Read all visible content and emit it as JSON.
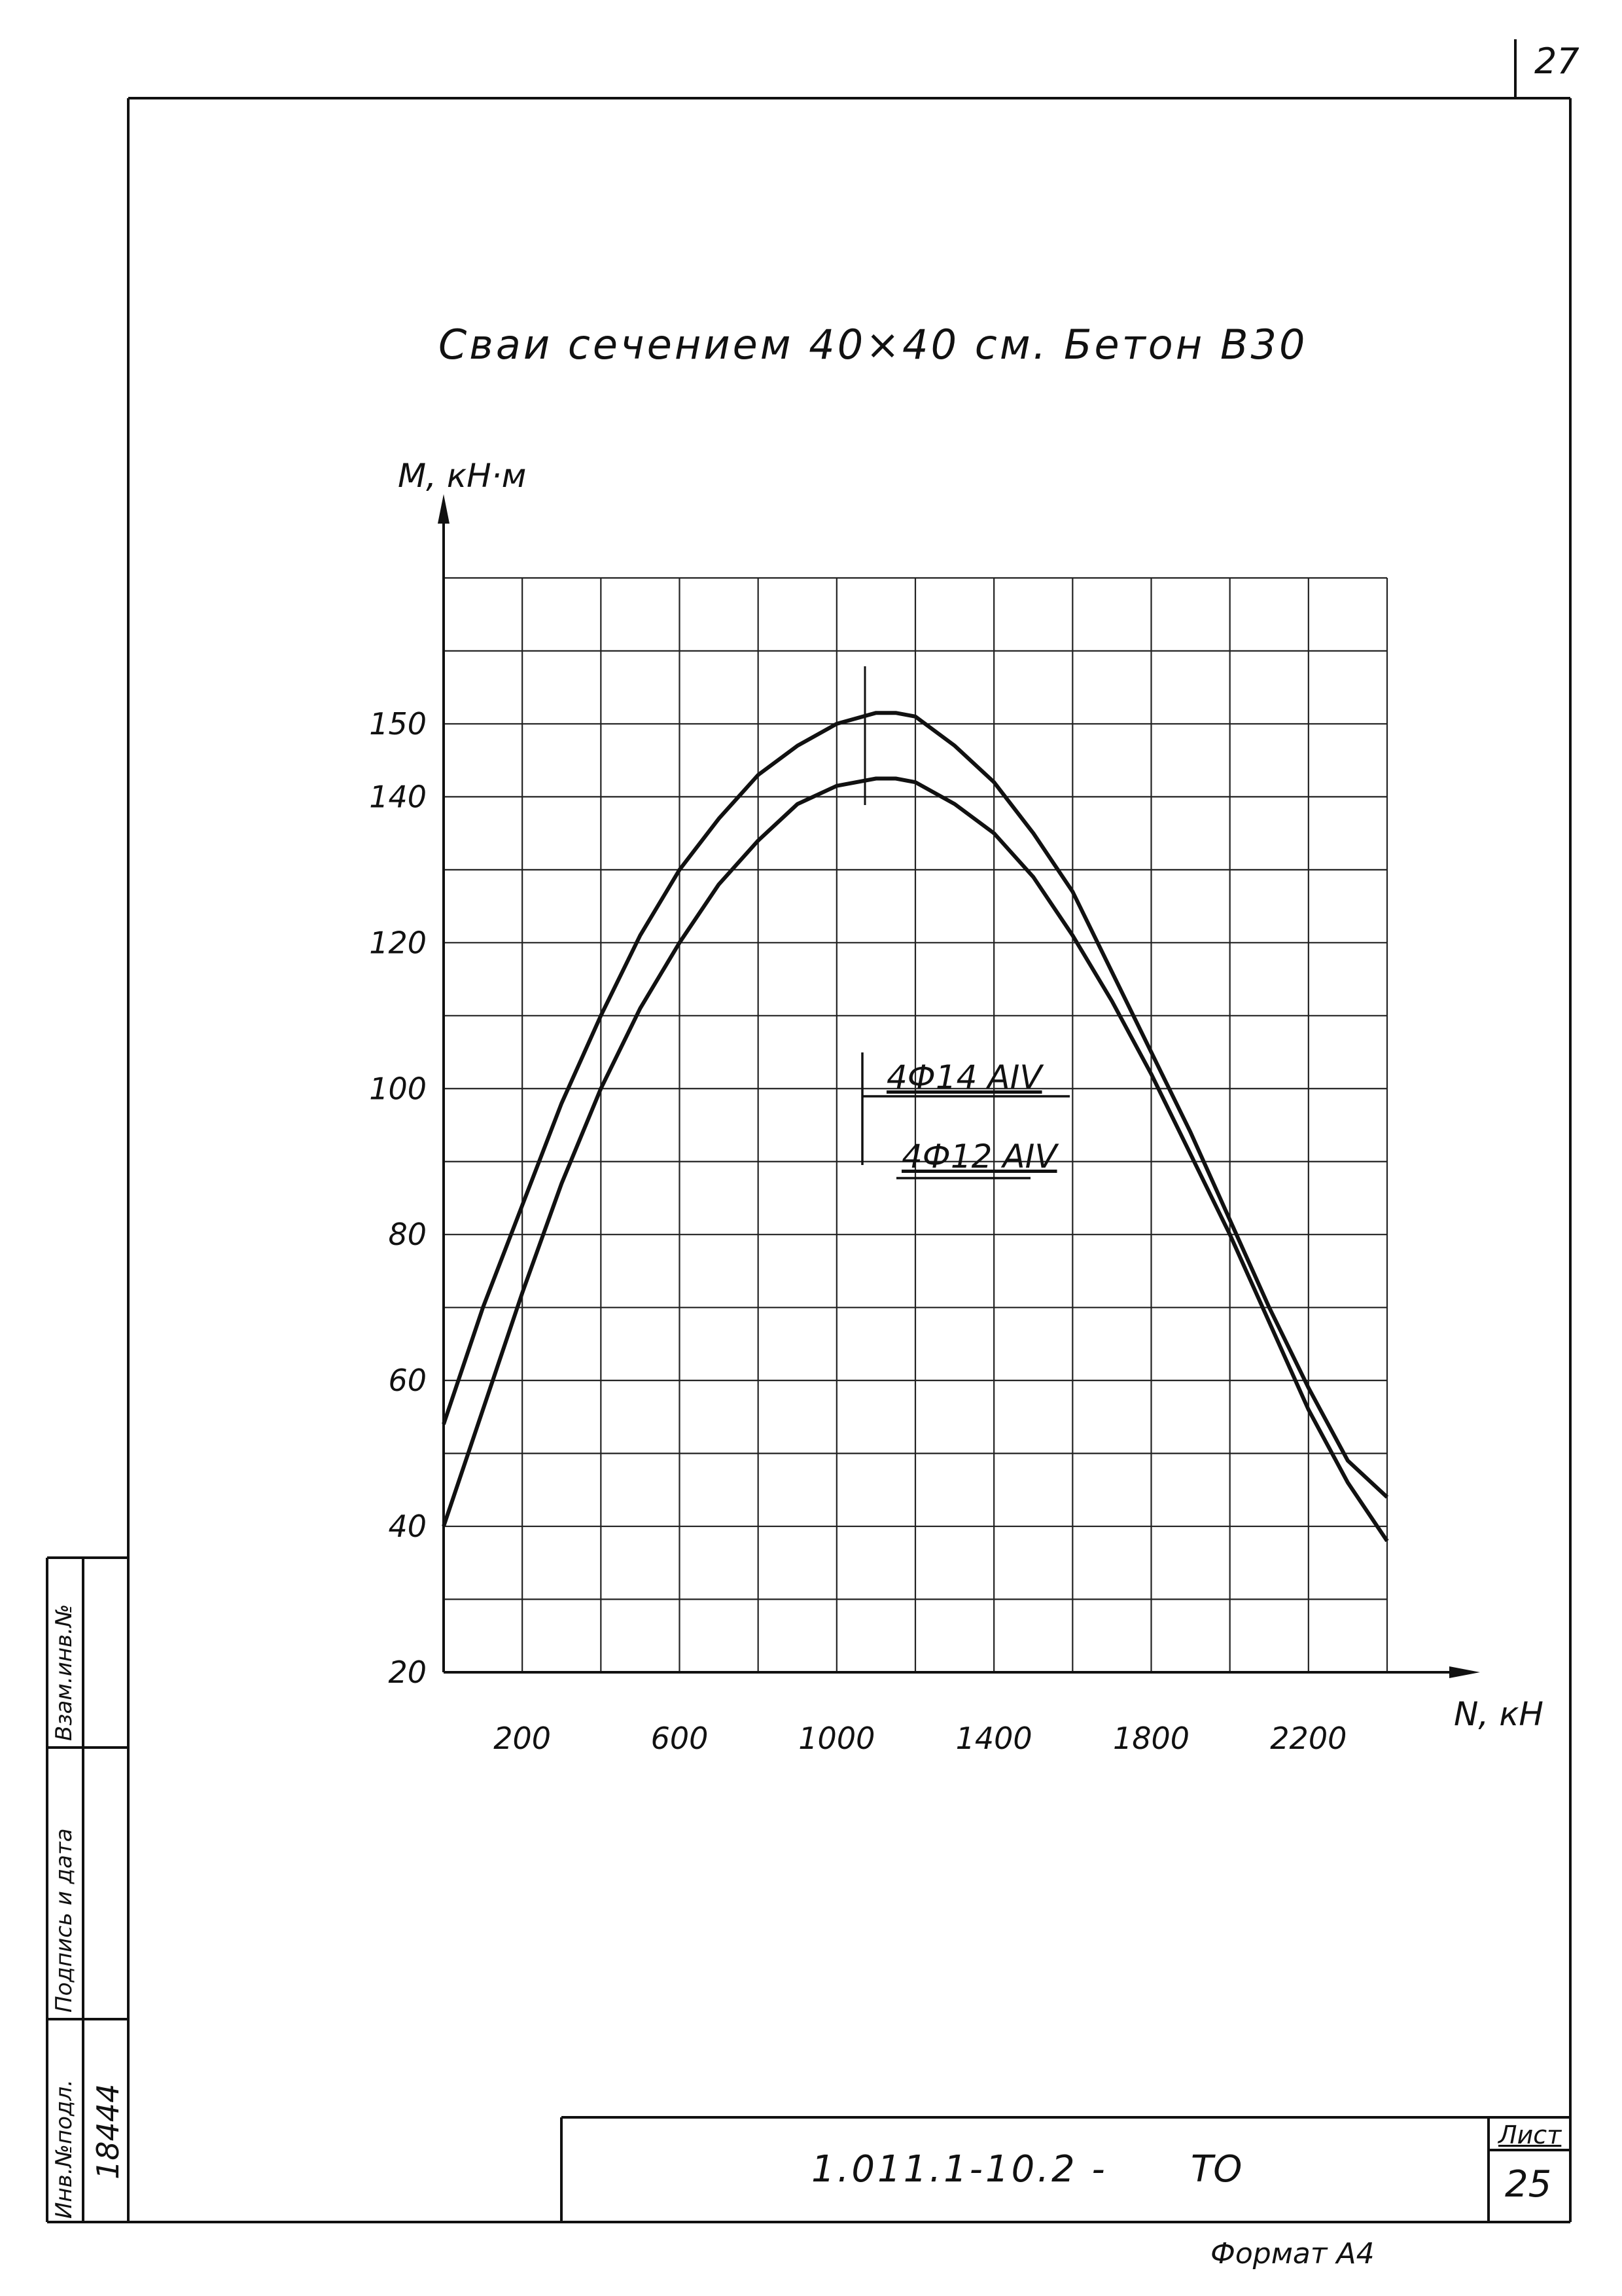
{
  "page_number": "27",
  "stamp": {
    "document_code": "1.011.1-10.2 -",
    "document_suffix": "ТО",
    "sheet_label": "Лист",
    "sheet_number": "25",
    "format_label": "Формат А4"
  },
  "side_stamp": {
    "inv_label": "Инв.№подл.",
    "inv_value": "18444",
    "sign_date_label": "Подпись и дата",
    "replace_label": "Взам.инв.№"
  },
  "chart_data": {
    "type": "line",
    "title": "Сваи сечением 40×40 см. Бетон В30",
    "xlabel": "N, кН",
    "ylabel": "М, кН·м",
    "xlim": [
      0,
      2400
    ],
    "ylim": [
      20,
      170
    ],
    "x_grid_step": 200,
    "y_grid_step": 10,
    "grid": true,
    "x_tick_labels": [
      "200",
      "600",
      "1000",
      "1400",
      "1800",
      "2200"
    ],
    "x_ticks": [
      200,
      600,
      1000,
      1400,
      1800,
      2200
    ],
    "y_tick_labels": [
      "20",
      "40",
      "60",
      "80",
      "100",
      "120",
      "140",
      "150"
    ],
    "y_ticks": [
      20,
      40,
      60,
      80,
      100,
      120,
      140,
      150
    ],
    "legend": {
      "upper": "4Ф14 АIV",
      "lower": "4Ф12 АIV"
    },
    "series": [
      {
        "name": "4Ф14 АIV",
        "x": [
          0,
          100,
          200,
          300,
          400,
          500,
          600,
          700,
          800,
          900,
          1000,
          1100,
          1150,
          1200,
          1300,
          1400,
          1500,
          1600,
          1700,
          1800,
          1900,
          2000,
          2100,
          2200,
          2300,
          2400
        ],
        "y": [
          54,
          70,
          84,
          98,
          110,
          121,
          130,
          137,
          143,
          147,
          150,
          151.5,
          151.5,
          151,
          147,
          142,
          135,
          127,
          116,
          105,
          94,
          82,
          70,
          59,
          49,
          44
        ]
      },
      {
        "name": "4Ф12 АIV",
        "x": [
          0,
          100,
          200,
          300,
          400,
          500,
          600,
          700,
          800,
          900,
          1000,
          1100,
          1150,
          1200,
          1300,
          1400,
          1500,
          1600,
          1700,
          1800,
          1900,
          2000,
          2100,
          2200,
          2300,
          2400
        ],
        "y": [
          40,
          56,
          72,
          87,
          100,
          111,
          120,
          128,
          134,
          139,
          141.5,
          142.5,
          142.5,
          142,
          139,
          135,
          129,
          121,
          112,
          102,
          91,
          80,
          68,
          56,
          46,
          38
        ]
      }
    ]
  }
}
